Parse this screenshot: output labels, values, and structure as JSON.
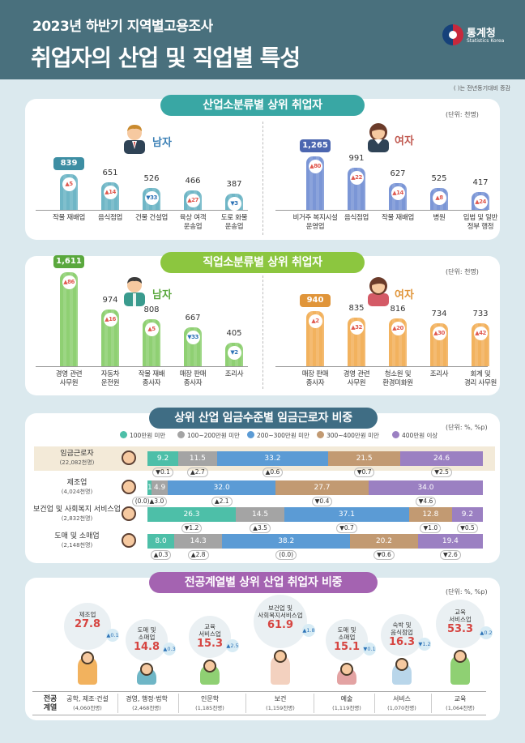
{
  "header": {
    "subtitle": "2023년 하반기 지역별고용조사",
    "title": "취업자의 산업 및 직업별 특성",
    "logo_name": "통계청",
    "logo_eng": "Statistics Korea"
  },
  "note": "(   )는 전년동기대비 증감",
  "industry": {
    "title": "산업소분류별 상위 취업자",
    "unit": "(단위: 천명)",
    "male_label": "남자",
    "female_label": "여자",
    "male": [
      {
        "value": "839",
        "change": "5",
        "dir": "up",
        "label": "작물 재배업"
      },
      {
        "value": "651",
        "change": "14",
        "dir": "up",
        "label": "음식점업"
      },
      {
        "value": "526",
        "change": "33",
        "dir": "down",
        "label": "건물 건설업"
      },
      {
        "value": "466",
        "change": "27",
        "dir": "up",
        "label": "육상 여객\n운송업"
      },
      {
        "value": "387",
        "change": "3",
        "dir": "down",
        "label": "도로 화물\n운송업"
      }
    ],
    "female": [
      {
        "value": "1,265",
        "change": "80",
        "dir": "up",
        "label": "비거주 복지시설\n운영업"
      },
      {
        "value": "991",
        "change": "22",
        "dir": "up",
        "label": "음식점업"
      },
      {
        "value": "627",
        "change": "14",
        "dir": "up",
        "label": "작물 재배업"
      },
      {
        "value": "525",
        "change": "8",
        "dir": "up",
        "label": "병원"
      },
      {
        "value": "417",
        "change": "24",
        "dir": "up",
        "label": "입법 및 일반\n정부 행정"
      }
    ],
    "male_color": "#6fb6c6",
    "female_color": "#7b96d6"
  },
  "occupation": {
    "title": "직업소분류별 상위 취업자",
    "unit": "(단위: 천명)",
    "male_label": "남자",
    "female_label": "여자",
    "male": [
      {
        "value": "1,611",
        "change": "86",
        "dir": "up",
        "label": "경영 관련\n사무원"
      },
      {
        "value": "974",
        "change": "16",
        "dir": "up",
        "label": "자동차\n운전원"
      },
      {
        "value": "808",
        "change": "5",
        "dir": "up",
        "label": "작물 재배\n종사자"
      },
      {
        "value": "667",
        "change": "33",
        "dir": "down",
        "label": "매장 판매\n종사자"
      },
      {
        "value": "405",
        "change": "2",
        "dir": "down",
        "label": "조리사"
      }
    ],
    "female": [
      {
        "value": "940",
        "change": "2",
        "dir": "up",
        "label": "매장 판매\n종사자"
      },
      {
        "value": "835",
        "change": "32",
        "dir": "up",
        "label": "경영 관련\n사무원"
      },
      {
        "value": "816",
        "change": "20",
        "dir": "up",
        "label": "청소원 및\n환경미화원"
      },
      {
        "value": "734",
        "change": "30",
        "dir": "up",
        "label": "조리사"
      },
      {
        "value": "733",
        "change": "42",
        "dir": "up",
        "label": "회계 및\n경리 사무원"
      }
    ],
    "male_color": "#8fd073",
    "female_color": "#f2b25e"
  },
  "wage": {
    "title": "상위 산업 임금수준별 임금근로자 비중",
    "unit": "(단위: %, %p)",
    "legend": [
      {
        "label": "100만원 미만",
        "color": "#4dbfa8"
      },
      {
        "label": "100~200만원 미만",
        "color": "#a4a4a4"
      },
      {
        "label": "200~300만원 미만",
        "color": "#5b9bd5"
      },
      {
        "label": "300~400만원 미만",
        "color": "#c29a72"
      },
      {
        "label": "400만원 이상",
        "color": "#9b80c2"
      }
    ],
    "rows": [
      {
        "name": "임금근로자",
        "count": "(22,082천명)",
        "values": [
          "9.2",
          "11.5",
          "33.2",
          "21.5",
          "24.6"
        ],
        "changes": [
          "▼0.1",
          "▲2.7",
          "▲0.6",
          "▼0.7",
          "▼2.5"
        ]
      },
      {
        "name": "제조업",
        "count": "(4,024천명)",
        "values": [
          "1.2",
          "4.9",
          "32.0",
          "27.7",
          "34.0"
        ],
        "changes": [
          "(0.0)▲3.0",
          "",
          "▲2.1",
          "▼0.4",
          "▼4.6"
        ]
      },
      {
        "name": "보건업 및 사회복지 서비스업",
        "count": "(2,832천명)",
        "values": [
          "26.3",
          "14.5",
          "37.1",
          "12.8",
          "9.2"
        ],
        "changes": [
          "▼1.2",
          "▲3.5",
          "▼0.7",
          "▼1.0",
          "▼0.5"
        ]
      },
      {
        "name": "도매 및 소매업",
        "count": "(2,148천명)",
        "values": [
          "8.0",
          "14.3",
          "38.2",
          "20.2",
          "19.4"
        ],
        "changes": [
          "▲0.3",
          "▲2.8",
          "(0.0)",
          "▼0.6",
          "▼2.6"
        ]
      }
    ]
  },
  "major": {
    "title": "전공계열별 상위 산업 취업자 비중",
    "unit": "(단위: %, %p)",
    "axis_label": "전공\n계열",
    "items": [
      {
        "major": "공학, 제조·건설",
        "count": "(4,060천명)",
        "industry": "제조업",
        "value": "27.8",
        "change": "▲0.1"
      },
      {
        "major": "경영, 행정·법학",
        "count": "(2,468천명)",
        "industry": "도매 및\n소매업",
        "value": "14.8",
        "change": "▲0.3"
      },
      {
        "major": "인문학",
        "count": "(1,185천명)",
        "industry": "교육\n서비스업",
        "value": "15.3",
        "change": "▲2.5"
      },
      {
        "major": "보건",
        "count": "(1,159천명)",
        "industry": "보건업 및\n사회복지서비스업",
        "value": "61.9",
        "change": "▲1.8"
      },
      {
        "major": "예술",
        "count": "(1,119천명)",
        "industry": "도매 및\n소매업",
        "value": "15.1",
        "change": "▼0.1"
      },
      {
        "major": "서비스",
        "count": "(1,070천명)",
        "industry": "숙박 및\n음식점업",
        "value": "16.3",
        "change": "▼1.2"
      },
      {
        "major": "교육",
        "count": "(1,064천명)",
        "industry": "교육\n서비스업",
        "value": "53.3",
        "change": "▲0.2"
      }
    ]
  }
}
